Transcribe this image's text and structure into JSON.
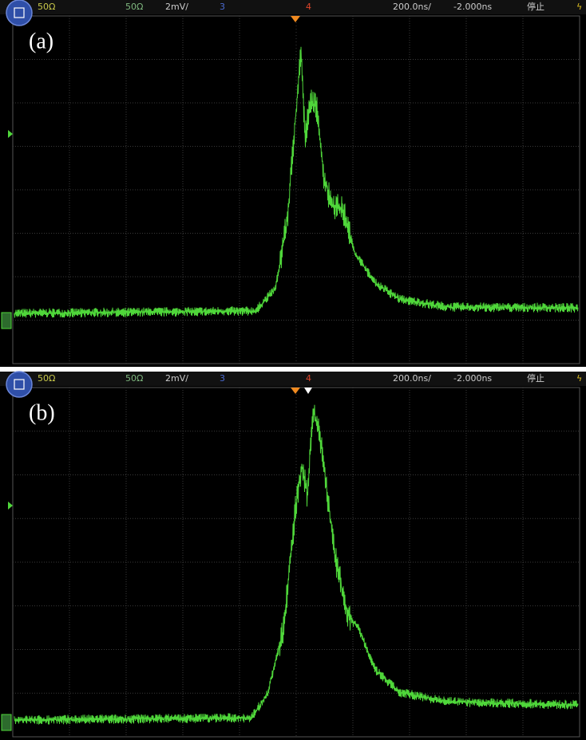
{
  "panels": [
    {
      "label": "(a)",
      "header": {
        "ch1_impedance": "50Ω",
        "ch2_impedance": "50Ω",
        "scale": "2mV/",
        "ch3": "3",
        "ch4": "4",
        "timebase": "200.0ns/",
        "delay": "-2.000ns",
        "status": "停止"
      }
    },
    {
      "label": "(b)",
      "header": {
        "ch1_impedance": "50Ω",
        "ch2_impedance": "50Ω",
        "scale": "2mV/",
        "ch3": "3",
        "ch4": "4",
        "timebase": "200.0ns/",
        "delay": "-2.000ns",
        "status": "停止"
      }
    }
  ]
}
